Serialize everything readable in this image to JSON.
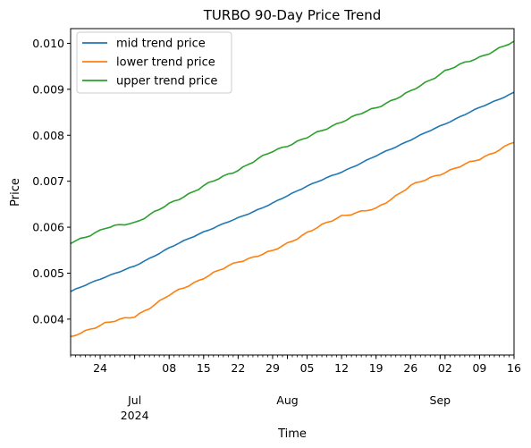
{
  "chart_data": {
    "type": "line",
    "title": "TURBO 90-Day Price Trend",
    "xlabel": "Time",
    "ylabel": "Price",
    "xlim": [
      "2024-06-18",
      "2024-09-16"
    ],
    "ylim": [
      0.00322,
      0.01032
    ],
    "grid": false,
    "legend_position": "top-left",
    "y_ticks": [
      {
        "value": 0.004,
        "label": "0.004"
      },
      {
        "value": 0.005,
        "label": "0.005"
      },
      {
        "value": 0.006,
        "label": "0.006"
      },
      {
        "value": 0.007,
        "label": "0.007"
      },
      {
        "value": 0.008,
        "label": "0.008"
      },
      {
        "value": 0.009,
        "label": "0.009"
      },
      {
        "value": 0.01,
        "label": "0.010"
      }
    ],
    "x_ticks": [
      {
        "date": "2024-06-24",
        "label": "24"
      },
      {
        "date": "2024-07-08",
        "label": "08"
      },
      {
        "date": "2024-07-15",
        "label": "15"
      },
      {
        "date": "2024-07-22",
        "label": "22"
      },
      {
        "date": "2024-07-29",
        "label": "29"
      },
      {
        "date": "2024-08-05",
        "label": "05"
      },
      {
        "date": "2024-08-12",
        "label": "12"
      },
      {
        "date": "2024-08-19",
        "label": "19"
      },
      {
        "date": "2024-08-26",
        "label": "26"
      },
      {
        "date": "2024-09-02",
        "label": "02"
      },
      {
        "date": "2024-09-09",
        "label": "09"
      },
      {
        "date": "2024-09-16",
        "label": "16"
      }
    ],
    "month_labels": [
      {
        "date": "2024-07-01",
        "label": "Jul",
        "sublabel": "2024"
      },
      {
        "date": "2024-08-01",
        "label": "Aug",
        "sublabel": ""
      },
      {
        "date": "2024-09-01",
        "label": "Sep",
        "sublabel": ""
      }
    ],
    "series": [
      {
        "name": "mid trend price",
        "color": "#1f77b4",
        "points": [
          [
            "2024-06-18",
            0.0046
          ],
          [
            "2024-06-25",
            0.00492
          ],
          [
            "2024-07-01",
            0.00515
          ],
          [
            "2024-07-08",
            0.00555
          ],
          [
            "2024-07-15",
            0.0059
          ],
          [
            "2024-07-22",
            0.0062
          ],
          [
            "2024-07-29",
            0.00652
          ],
          [
            "2024-08-05",
            0.0069
          ],
          [
            "2024-08-12",
            0.0072
          ],
          [
            "2024-08-19",
            0.00755
          ],
          [
            "2024-08-26",
            0.0079
          ],
          [
            "2024-09-02",
            0.00825
          ],
          [
            "2024-09-09",
            0.0086
          ],
          [
            "2024-09-16",
            0.00893
          ]
        ]
      },
      {
        "name": "lower trend price",
        "color": "#ff7f0e",
        "points": [
          [
            "2024-06-18",
            0.0036
          ],
          [
            "2024-06-25",
            0.00392
          ],
          [
            "2024-07-01",
            0.00405
          ],
          [
            "2024-07-08",
            0.00452
          ],
          [
            "2024-07-15",
            0.0049
          ],
          [
            "2024-07-22",
            0.00525
          ],
          [
            "2024-07-29",
            0.00548
          ],
          [
            "2024-08-05",
            0.00588
          ],
          [
            "2024-08-12",
            0.00625
          ],
          [
            "2024-08-19",
            0.0064
          ],
          [
            "2024-08-26",
            0.0069
          ],
          [
            "2024-09-02",
            0.0072
          ],
          [
            "2024-09-09",
            0.00748
          ],
          [
            "2024-09-16",
            0.00785
          ]
        ]
      },
      {
        "name": "upper trend price",
        "color": "#2ca02c",
        "points": [
          [
            "2024-06-18",
            0.00565
          ],
          [
            "2024-06-25",
            0.00598
          ],
          [
            "2024-07-01",
            0.0061
          ],
          [
            "2024-07-08",
            0.0065
          ],
          [
            "2024-07-15",
            0.0069
          ],
          [
            "2024-07-22",
            0.00725
          ],
          [
            "2024-07-29",
            0.00765
          ],
          [
            "2024-08-05",
            0.00795
          ],
          [
            "2024-08-12",
            0.0083
          ],
          [
            "2024-08-19",
            0.0086
          ],
          [
            "2024-08-26",
            0.00895
          ],
          [
            "2024-09-02",
            0.0094
          ],
          [
            "2024-09-09",
            0.0097
          ],
          [
            "2024-09-16",
            0.01003
          ]
        ]
      }
    ]
  }
}
